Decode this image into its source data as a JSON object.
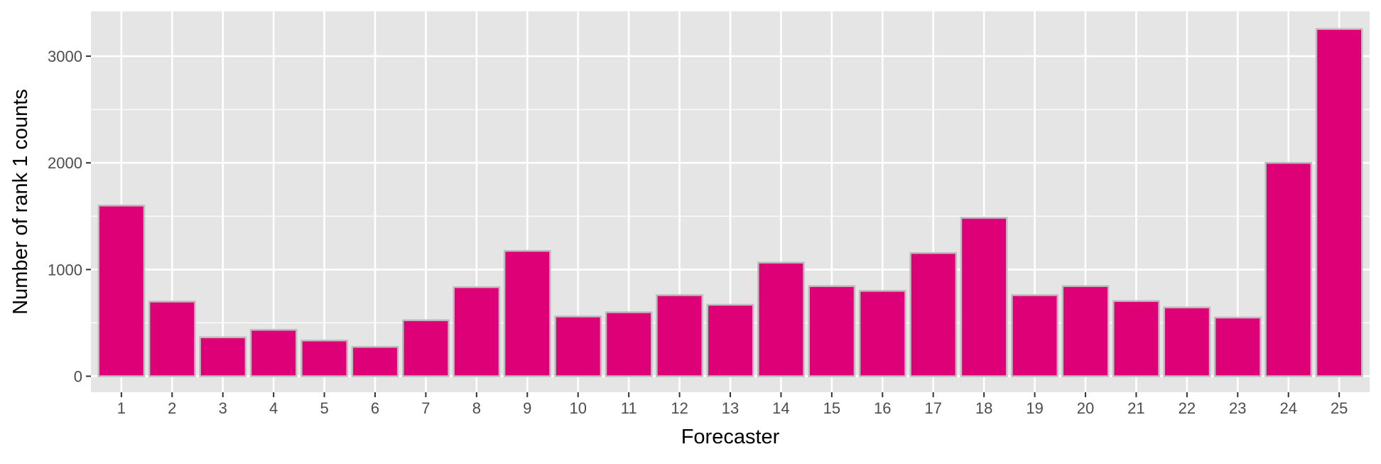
{
  "chart_data": {
    "type": "bar",
    "title": "",
    "xlabel": "Forecaster",
    "ylabel": "Number of rank 1 counts",
    "categories": [
      "1",
      "2",
      "3",
      "4",
      "5",
      "6",
      "7",
      "8",
      "9",
      "10",
      "11",
      "12",
      "13",
      "14",
      "15",
      "16",
      "17",
      "18",
      "19",
      "20",
      "21",
      "22",
      "23",
      "24",
      "25"
    ],
    "values": [
      1600,
      700,
      365,
      435,
      335,
      275,
      525,
      835,
      1175,
      560,
      600,
      760,
      670,
      1065,
      845,
      800,
      1155,
      1485,
      760,
      845,
      705,
      645,
      550,
      2000,
      3255
    ],
    "ylim": [
      -150,
      3420
    ],
    "yticks": [
      0,
      1000,
      2000,
      3000
    ],
    "yticks_minor": [
      500,
      1500,
      2500
    ],
    "yticks_labels": [
      "0",
      "1000",
      "2000",
      "3000"
    ],
    "grid": true,
    "legend": "none",
    "colors": {
      "bar_fill": "#DD0077",
      "bar_outline": "#BDBDBD",
      "panel_background": "#E5E5E5",
      "grid": "#FFFFFF"
    }
  }
}
